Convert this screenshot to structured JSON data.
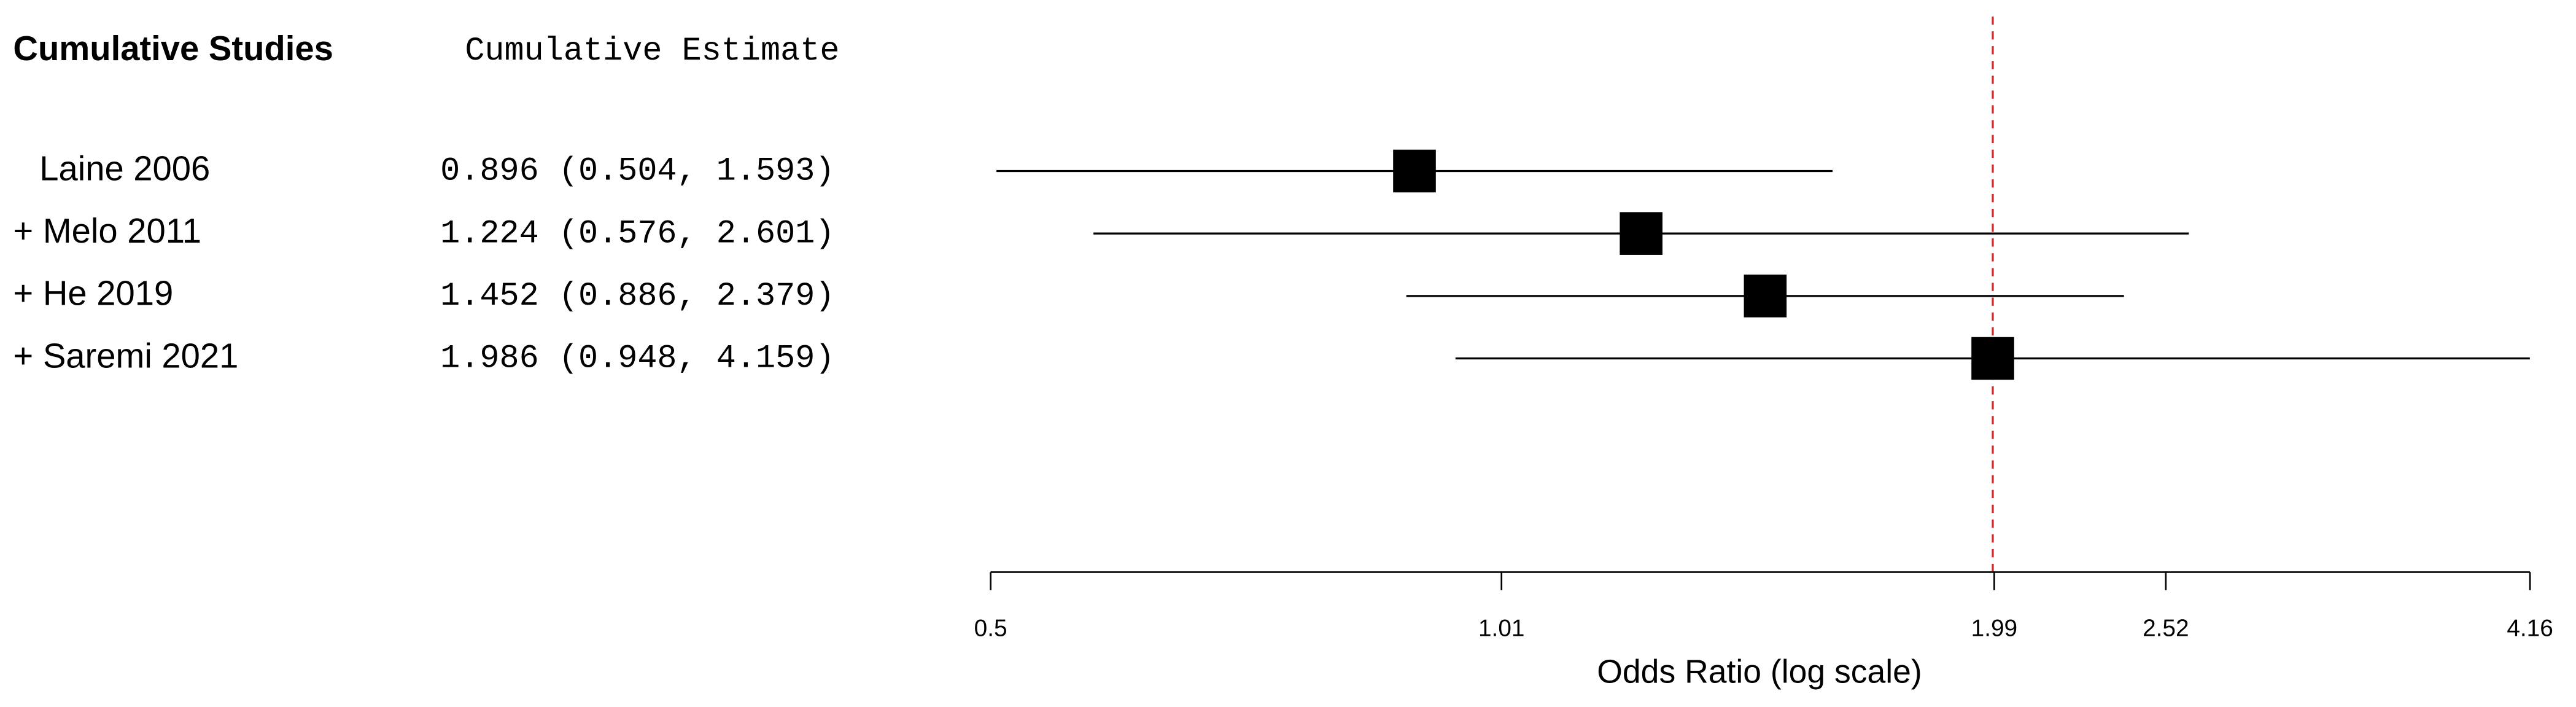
{
  "chart_data": {
    "type": "forest",
    "columns": [
      "Cumulative Studies",
      "Cumulative Estimate"
    ],
    "categories": [
      "Laine 2006",
      "+ Melo 2011",
      "+ He 2019",
      "+ Saremi 2021"
    ],
    "values": [
      0.896,
      1.224,
      1.452,
      1.986
    ],
    "lower": [
      0.504,
      0.576,
      0.886,
      0.948
    ],
    "upper": [
      1.593,
      2.601,
      2.379,
      4.159
    ],
    "value_labels": [
      "0.896 (0.504, 1.593)",
      "1.224 (0.576, 2.601)",
      "1.452 (0.886, 2.379)",
      "1.986 (0.948, 4.159)"
    ],
    "xlabel": "Odds Ratio (log scale)",
    "xscale": "log",
    "xlim": [
      0.5,
      4.16
    ],
    "xticks": [
      0.5,
      1.01,
      1.99,
      2.52,
      4.16
    ],
    "ref_line": 1.986,
    "ref_color": "#d62728",
    "color": "#000000"
  }
}
